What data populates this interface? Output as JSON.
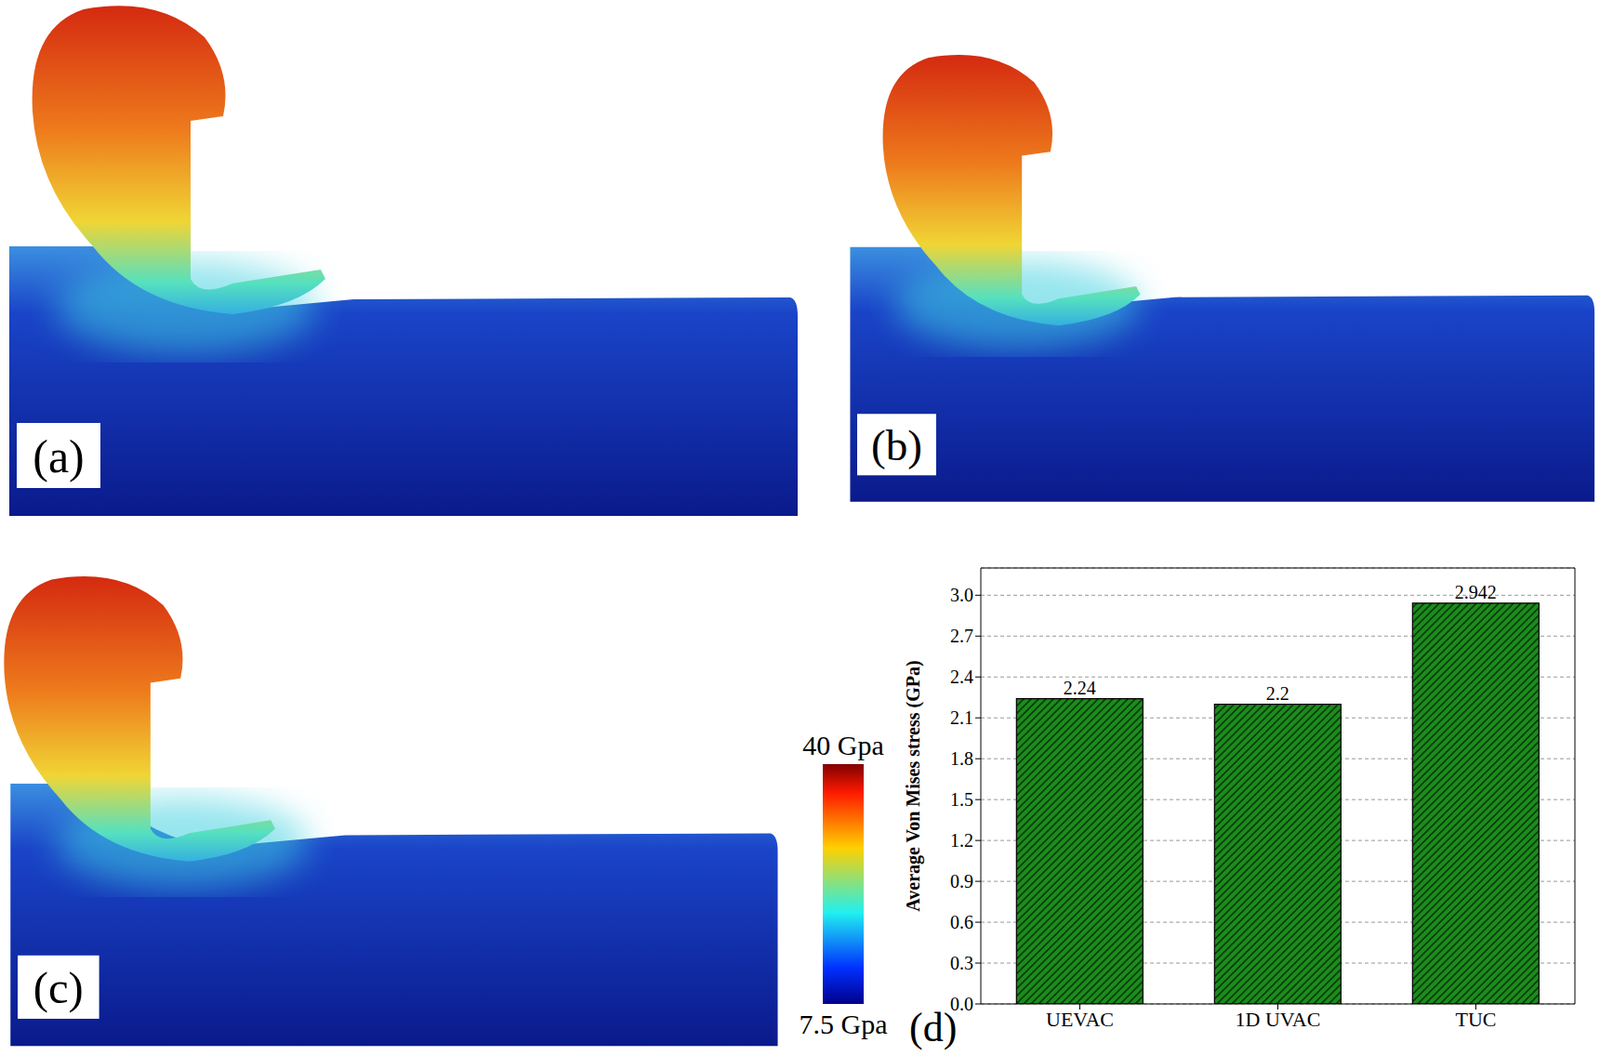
{
  "simulation_panels": [
    {
      "label": "(a)"
    },
    {
      "label": "(b)"
    },
    {
      "label": "(c)"
    }
  ],
  "color_bar": {
    "range": [
      7.5,
      40
    ],
    "ticks": [
      {
        "value": 40,
        "label": "40 Gpa"
      },
      {
        "value": 7.5,
        "label": "7.5 Gpa"
      }
    ]
  },
  "chart_data": {
    "type": "bar",
    "panel_label": "(d)",
    "y_label": "Average  Von Mises stress (GPa)",
    "categories": [
      "UEVAC",
      "1D UVAC",
      "TUC"
    ],
    "values": [
      2.24,
      2.2,
      2.942
    ],
    "color": "#1b8c1b",
    "ylim": [
      0,
      3.2
    ],
    "yticks": [
      {
        "value": 0,
        "label": "0.0"
      },
      0.3,
      0.6,
      0.9,
      1.2,
      1.5,
      1.8,
      2.1,
      2.4,
      2.7,
      {
        "value": 3,
        "label": "3.0"
      }
    ],
    "grid": true,
    "data_labels": true
  }
}
